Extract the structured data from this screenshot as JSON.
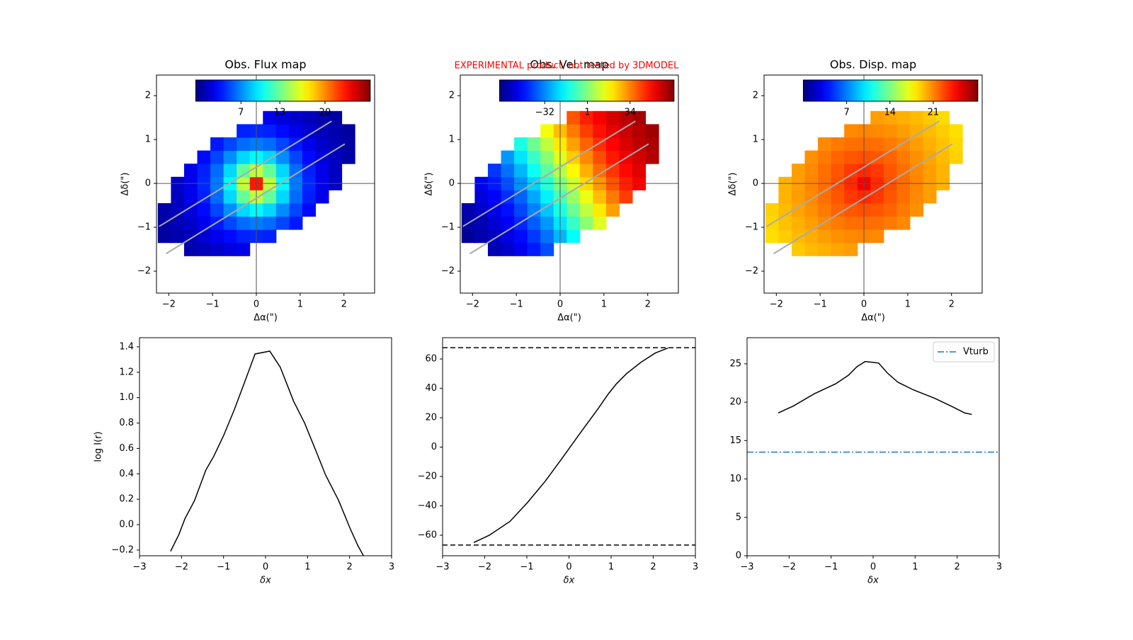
{
  "chart_data": [
    {
      "type": "heatmap",
      "title": "Obs. Flux map",
      "xlabel": "Δα(\")",
      "ylabel": "Δδ(\")",
      "colormap": "jet",
      "x": [
        -2.1,
        -1.8,
        -1.5,
        -1.2,
        -0.9,
        -0.6,
        -0.3,
        0,
        0.3,
        0.6,
        0.9,
        1.2,
        1.5,
        1.8,
        2.1
      ],
      "y": [
        -1.5,
        -1.2,
        -0.9,
        -0.6,
        -0.3,
        0,
        0.3,
        0.6,
        0.9,
        1.2,
        1.5
      ],
      "z": [
        [
          null,
          null,
          1.2,
          1.6,
          2.0,
          2.5,
          2.8,
          null,
          null,
          null,
          null,
          null,
          null,
          null,
          null
        ],
        [
          0.8,
          1.2,
          1.6,
          2.2,
          2.9,
          3.6,
          4.2,
          4.4,
          4.2,
          null,
          null,
          null,
          null,
          null,
          null
        ],
        [
          1.0,
          1.4,
          2.0,
          2.9,
          4.0,
          5.2,
          6.2,
          6.6,
          6.2,
          5.2,
          4.0,
          null,
          null,
          null,
          null
        ],
        [
          1.1,
          1.7,
          2.5,
          3.6,
          5.2,
          7.1,
          9.1,
          10.0,
          9.1,
          7.1,
          5.2,
          3.6,
          null,
          null,
          null
        ],
        [
          null,
          1.8,
          2.8,
          4.2,
          6.2,
          9.1,
          12.8,
          15.2,
          12.8,
          9.1,
          6.2,
          4.2,
          2.8,
          null,
          null
        ],
        [
          null,
          1.9,
          2.9,
          4.4,
          6.6,
          10.0,
          15.2,
          23,
          15.2,
          10.0,
          6.6,
          4.4,
          2.9,
          1.9,
          null
        ],
        [
          null,
          null,
          2.8,
          4.2,
          6.2,
          9.1,
          12.8,
          15.2,
          12.8,
          9.1,
          6.2,
          4.2,
          2.8,
          1.8,
          null
        ],
        [
          null,
          null,
          null,
          3.6,
          5.2,
          7.1,
          9.1,
          10.0,
          9.1,
          7.1,
          5.2,
          3.6,
          2.5,
          1.7,
          1.1
        ],
        [
          null,
          null,
          null,
          null,
          4.0,
          5.2,
          6.2,
          6.6,
          6.2,
          5.2,
          4.0,
          2.9,
          2.0,
          1.4,
          1.0
        ],
        [
          null,
          null,
          null,
          null,
          null,
          null,
          4.2,
          4.4,
          4.2,
          3.6,
          2.9,
          2.2,
          1.6,
          1.2,
          0.8
        ],
        [
          null,
          null,
          null,
          null,
          null,
          null,
          null,
          null,
          2.8,
          2.5,
          2.0,
          1.6,
          1.2,
          0.9,
          null
        ]
      ],
      "clim": [
        0,
        27
      ],
      "cticks": [
        7,
        13,
        20
      ],
      "xlim": [
        -2.28,
        2.7
      ],
      "ylim": [
        -2.5,
        2.47
      ],
      "xticks": [
        {
          "value": -2,
          "label": "−2"
        },
        {
          "value": -1,
          "label": "−1"
        },
        0,
        1,
        2
      ],
      "yticks": [
        {
          "value": -2,
          "label": "−2"
        },
        {
          "value": -1,
          "label": "−1"
        },
        0,
        1,
        2
      ],
      "slit_lines": [
        {
          "x": [
            -2.22,
            1.72
          ],
          "y": [
            -0.98,
            1.42
          ]
        },
        {
          "x": [
            -2.06,
            2.02
          ],
          "y": [
            -1.6,
            0.9
          ]
        }
      ],
      "slit_color": "#aaaaaa"
    },
    {
      "type": "heatmap",
      "title": "Obs. Vel. map",
      "xlabel": "Δα(\")",
      "ylabel": "Δδ(\")",
      "colormap": "jet",
      "annotation": "EXPERIMENTAL product, not tested by 3DMODEL",
      "annotation_color": "#ff0000",
      "x": [
        -2.1,
        -1.8,
        -1.5,
        -1.2,
        -0.9,
        -0.6,
        -0.3,
        0,
        0.3,
        0.6,
        0.9,
        1.2,
        1.5,
        1.8,
        2.1
      ],
      "y": [
        -1.5,
        -1.2,
        -0.9,
        -0.6,
        -0.3,
        0,
        0.3,
        0.6,
        0.9,
        1.2,
        1.5
      ],
      "z": [
        [
          null,
          null,
          -60,
          -57,
          -52,
          -47,
          -40,
          null,
          null,
          null,
          null,
          null,
          null,
          null,
          null
        ],
        [
          -64,
          -61,
          -58,
          -54,
          -49,
          -43,
          -35,
          -26,
          -16,
          null,
          null,
          null,
          null,
          null,
          null
        ],
        [
          -62,
          -60,
          -56,
          -51,
          -45,
          -38,
          -30,
          -20,
          -9,
          2,
          13,
          null,
          null,
          null,
          null
        ],
        [
          -61,
          -57,
          -53,
          -48,
          -41,
          -33,
          -24,
          -13,
          -2,
          9,
          20,
          30,
          null,
          null,
          null
        ],
        [
          null,
          -55,
          -50,
          -44,
          -37,
          -28,
          -18,
          -7,
          4,
          15,
          26,
          35,
          43,
          null,
          null
        ],
        [
          null,
          -52,
          -47,
          -40,
          -31,
          -22,
          -11,
          0,
          11,
          22,
          31,
          40,
          47,
          52,
          null
        ],
        [
          null,
          null,
          -43,
          -35,
          -26,
          -15,
          -4,
          7,
          18,
          28,
          37,
          44,
          50,
          55,
          null
        ],
        [
          null,
          null,
          null,
          -30,
          -20,
          -9,
          2,
          13,
          24,
          33,
          41,
          48,
          53,
          57,
          61
        ],
        [
          null,
          null,
          null,
          null,
          -13,
          -2,
          9,
          20,
          30,
          38,
          45,
          51,
          56,
          60,
          62
        ],
        [
          null,
          null,
          null,
          null,
          null,
          null,
          16,
          26,
          35,
          43,
          49,
          54,
          58,
          61,
          64
        ],
        [
          null,
          null,
          null,
          null,
          null,
          null,
          null,
          null,
          40,
          47,
          52,
          57,
          60,
          63,
          null
        ]
      ],
      "clim": [
        -67,
        68
      ],
      "cticks": [
        {
          "value": -32,
          "label": "−32"
        },
        1,
        34
      ],
      "xlim": [
        -2.28,
        2.7
      ],
      "ylim": [
        -2.5,
        2.47
      ],
      "xticks": [
        {
          "value": -2,
          "label": "−2"
        },
        {
          "value": -1,
          "label": "−1"
        },
        0,
        1,
        2
      ],
      "yticks": [
        {
          "value": -2,
          "label": "−2"
        },
        {
          "value": -1,
          "label": "−1"
        },
        0,
        1,
        2
      ],
      "slit_lines": [
        {
          "x": [
            -2.22,
            1.72
          ],
          "y": [
            -0.98,
            1.42
          ]
        },
        {
          "x": [
            -2.06,
            2.02
          ],
          "y": [
            -1.6,
            0.9
          ]
        }
      ],
      "slit_color": "#aaaaaa"
    },
    {
      "type": "heatmap",
      "title": "Obs. Disp. map",
      "xlabel": "Δα(\")",
      "ylabel": "Δδ(\")",
      "colormap": "jet",
      "x": [
        -2.1,
        -1.8,
        -1.5,
        -1.2,
        -0.9,
        -0.6,
        -0.3,
        0,
        0.3,
        0.6,
        0.9,
        1.2,
        1.5,
        1.8,
        2.1
      ],
      "y": [
        -1.5,
        -1.2,
        -0.9,
        -0.6,
        -0.3,
        0,
        0.3,
        0.6,
        0.9,
        1.2,
        1.5
      ],
      "z": [
        [
          null,
          null,
          19.1,
          19.5,
          19.8,
          20.1,
          20.3,
          null,
          null,
          null,
          null,
          null,
          null,
          null,
          null
        ],
        [
          18.5,
          19.0,
          19.5,
          19.9,
          20.3,
          20.7,
          20.9,
          21.0,
          20.9,
          null,
          null,
          null,
          null,
          null,
          null
        ],
        [
          18.7,
          19.3,
          19.8,
          20.3,
          20.9,
          21.3,
          21.6,
          21.7,
          21.6,
          21.3,
          20.9,
          null,
          null,
          null,
          null
        ],
        [
          18.9,
          19.5,
          20.1,
          20.7,
          21.3,
          21.9,
          22.3,
          22.5,
          22.3,
          21.9,
          21.3,
          20.7,
          null,
          null,
          null
        ],
        [
          null,
          19.7,
          20.3,
          20.9,
          21.6,
          22.3,
          23.1,
          23.5,
          23.1,
          22.3,
          21.6,
          20.9,
          20.3,
          null,
          null
        ],
        [
          null,
          19.7,
          20.3,
          21.0,
          21.7,
          22.5,
          23.5,
          25.0,
          23.5,
          22.5,
          21.7,
          21.0,
          20.3,
          19.7,
          null
        ],
        [
          null,
          null,
          20.3,
          20.9,
          21.6,
          22.3,
          23.1,
          23.5,
          23.1,
          22.3,
          21.6,
          20.9,
          20.3,
          19.7,
          null
        ],
        [
          null,
          null,
          null,
          20.7,
          21.3,
          21.9,
          22.3,
          22.5,
          22.3,
          21.9,
          21.3,
          20.7,
          20.1,
          19.5,
          18.9
        ],
        [
          null,
          null,
          null,
          null,
          20.9,
          21.3,
          21.6,
          21.7,
          21.6,
          21.3,
          20.9,
          20.3,
          19.8,
          19.3,
          18.7
        ],
        [
          null,
          null,
          null,
          null,
          null,
          null,
          20.9,
          21.0,
          20.9,
          20.7,
          20.3,
          19.9,
          19.5,
          19.0,
          18.5
        ],
        [
          null,
          null,
          null,
          null,
          null,
          null,
          null,
          null,
          20.3,
          20.1,
          19.8,
          19.5,
          19.1,
          18.6,
          null
        ]
      ],
      "clim": [
        0,
        28.2
      ],
      "cticks": [
        7,
        14,
        21
      ],
      "xlim": [
        -2.28,
        2.7
      ],
      "ylim": [
        -2.5,
        2.47
      ],
      "xticks": [
        {
          "value": -2,
          "label": "−2"
        },
        {
          "value": -1,
          "label": "−1"
        },
        0,
        1,
        2
      ],
      "yticks": [
        {
          "value": -2,
          "label": "−2"
        },
        {
          "value": -1,
          "label": "−1"
        },
        0,
        1,
        2
      ],
      "slit_lines": [
        {
          "x": [
            -2.22,
            1.72
          ],
          "y": [
            -0.98,
            1.42
          ]
        },
        {
          "x": [
            -2.06,
            2.02
          ],
          "y": [
            -1.6,
            0.9
          ]
        }
      ],
      "slit_color": "#aaaaaa"
    },
    {
      "type": "line",
      "xlabel": "δx",
      "ylabel": "log I(r)",
      "x": [
        -2.26,
        -2.06,
        -1.92,
        -1.69,
        -1.42,
        -1.23,
        -1.0,
        -0.75,
        -0.5,
        -0.25,
        0.1,
        0.35,
        0.67,
        0.93,
        1.2,
        1.43,
        1.74,
        2.0,
        2.19,
        2.33
      ],
      "series": [
        {
          "color": "#000000",
          "values": [
            -0.21,
            -0.076,
            0.046,
            0.19,
            0.43,
            0.54,
            0.7,
            0.9,
            1.12,
            1.344,
            1.366,
            1.24,
            0.97,
            0.8,
            0.58,
            0.39,
            0.19,
            -0.02,
            -0.16,
            -0.245
          ]
        }
      ],
      "xlim": [
        -3,
        3
      ],
      "ylim": [
        -0.245,
        1.472
      ],
      "xticks": [
        {
          "value": -3,
          "label": "−3"
        },
        {
          "value": -2,
          "label": "−2"
        },
        {
          "value": -1,
          "label": "−1"
        },
        0,
        1,
        2,
        3
      ],
      "yticks": [
        {
          "value": -0.2,
          "label": "−0.2"
        },
        {
          "value": 0,
          "label": "0.0"
        },
        0.2,
        0.4,
        0.6,
        0.8,
        {
          "value": 1,
          "label": "1.0"
        },
        1.2,
        1.4
      ]
    },
    {
      "type": "line",
      "xlabel": "δx",
      "x": [
        -2.26,
        -1.89,
        -1.4,
        -0.98,
        -0.56,
        -0.14,
        0.28,
        0.7,
        0.92,
        1.12,
        1.37,
        1.71,
        2.05,
        2.35
      ],
      "series": [
        {
          "color": "#000000",
          "values": [
            -65,
            -60,
            -50.6,
            -37.6,
            -23.1,
            -6.7,
            10.1,
            26.5,
            35.7,
            42.9,
            50.1,
            57.8,
            64.1,
            67.5
          ]
        }
      ],
      "reference_lines": [
        {
          "y": 67.7,
          "color": "#000000",
          "dash": "dashed"
        },
        {
          "y": -66.7,
          "color": "#000000",
          "dash": "dashed"
        }
      ],
      "xlim": [
        -3,
        3
      ],
      "ylim": [
        -74,
        74.5
      ],
      "xticks": [
        {
          "value": -3,
          "label": "−3"
        },
        {
          "value": -2,
          "label": "−2"
        },
        {
          "value": -1,
          "label": "−1"
        },
        0,
        1,
        2,
        3
      ],
      "yticks": [
        {
          "value": -60,
          "label": "−60"
        },
        {
          "value": -40,
          "label": "−40"
        },
        {
          "value": -20,
          "label": "−20"
        },
        0,
        20,
        40,
        60
      ]
    },
    {
      "type": "line",
      "xlabel": "δx",
      "legend": "upper right",
      "x": [
        -2.26,
        -1.9,
        -1.4,
        -0.89,
        -0.59,
        -0.39,
        -0.19,
        -0.02,
        0.13,
        0.34,
        0.59,
        0.96,
        1.47,
        1.89,
        2.18,
        2.35
      ],
      "series": [
        {
          "color": "#000000",
          "values": [
            18.6,
            19.5,
            21.1,
            22.4,
            23.5,
            24.6,
            25.3,
            25.2,
            25.1,
            23.8,
            22.6,
            21.6,
            20.5,
            19.4,
            18.6,
            18.4
          ]
        }
      ],
      "reference_lines": [
        {
          "name": "Vturb",
          "y": 13.5,
          "color": "#1f77b4",
          "dash": "dashdot"
        }
      ],
      "xlim": [
        -3,
        3
      ],
      "ylim": [
        0,
        28.4
      ],
      "xticks": [
        {
          "value": -3,
          "label": "−3"
        },
        {
          "value": -2,
          "label": "−2"
        },
        {
          "value": -1,
          "label": "−1"
        },
        0,
        1,
        2,
        3
      ],
      "yticks": [
        0,
        5,
        10,
        15,
        20,
        25
      ]
    }
  ]
}
